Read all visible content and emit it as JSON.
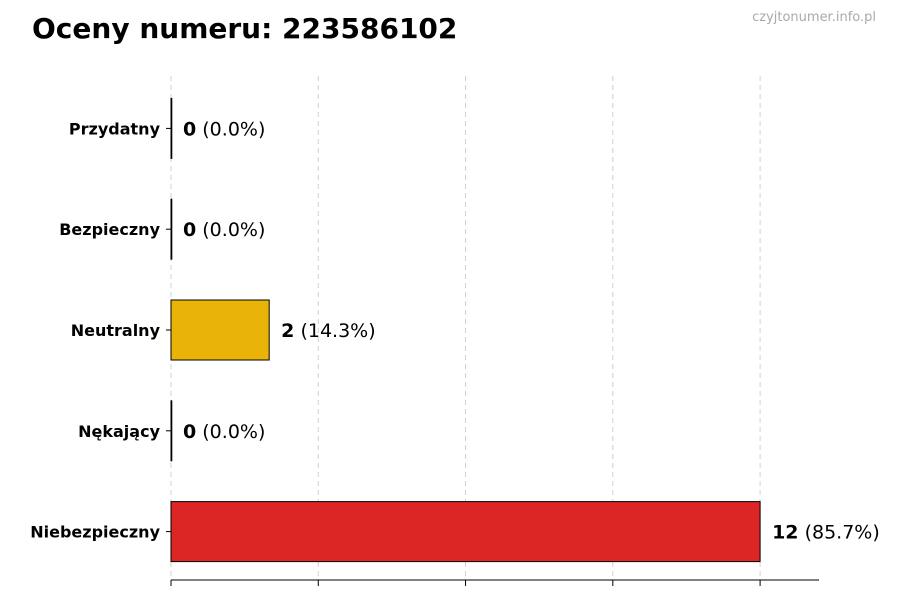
{
  "title": "Oceny numeru: 223586102",
  "watermark": "czyjtonumer.info.pl",
  "chart_data": {
    "type": "bar",
    "orientation": "horizontal",
    "categories": [
      "Przydatny",
      "Bezpieczny",
      "Neutralny",
      "Nękający",
      "Niebezpieczny"
    ],
    "values": [
      0,
      0,
      2,
      0,
      12
    ],
    "value_labels": [
      "(0.0%)",
      "(0.0%)",
      "(14.3%)",
      "(0.0%)",
      "(85.7%)"
    ],
    "colors": [
      "#4caf50",
      "#2e7d32",
      "#eab308",
      "#f97316",
      "#dc2626"
    ],
    "xlim": [
      0,
      13.2
    ],
    "xticks": [
      0,
      3,
      6,
      9,
      12
    ],
    "xtick_labels_shown": false,
    "grid": "x-dashed",
    "title": "Oceny numeru: 223586102",
    "xlabel": "",
    "ylabel": ""
  }
}
